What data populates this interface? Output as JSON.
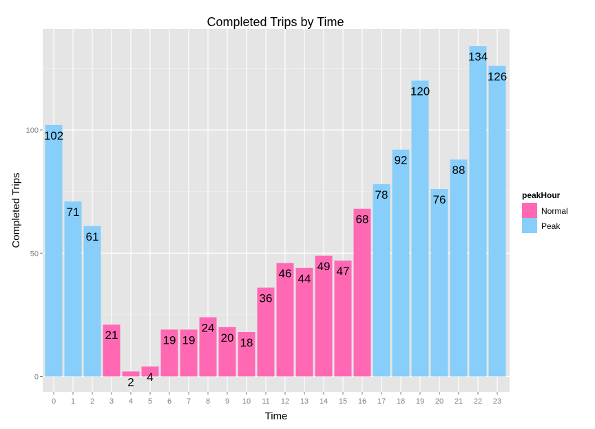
{
  "chart_data": {
    "type": "bar",
    "title": "Completed Trips by Time",
    "xlabel": "Time",
    "ylabel": "Completed Trips",
    "categories": [
      "0",
      "1",
      "2",
      "3",
      "4",
      "5",
      "6",
      "7",
      "8",
      "9",
      "10",
      "11",
      "12",
      "13",
      "14",
      "15",
      "16",
      "17",
      "18",
      "19",
      "20",
      "21",
      "22",
      "23"
    ],
    "values": [
      102,
      71,
      61,
      21,
      2,
      4,
      19,
      19,
      24,
      20,
      18,
      36,
      46,
      44,
      49,
      47,
      68,
      78,
      92,
      120,
      76,
      88,
      134,
      126
    ],
    "group": [
      "Peak",
      "Peak",
      "Peak",
      "Normal",
      "Normal",
      "Normal",
      "Normal",
      "Normal",
      "Normal",
      "Normal",
      "Normal",
      "Normal",
      "Normal",
      "Normal",
      "Normal",
      "Normal",
      "Normal",
      "Peak",
      "Peak",
      "Peak",
      "Peak",
      "Peak",
      "Peak",
      "Peak"
    ],
    "yticks": [
      "0",
      "50",
      "100"
    ],
    "ylim": [
      -6,
      140.6
    ],
    "grid": true,
    "legend": {
      "title": "peakHour",
      "position": "right",
      "items": [
        {
          "name": "Normal",
          "color": "#FF69B4"
        },
        {
          "name": "Peak",
          "color": "#87CEFA"
        }
      ]
    },
    "colors": {
      "panel": "#E5E5E5",
      "grid_major": "#FFFFFF",
      "grid_minor": "#F2F2F2"
    }
  }
}
